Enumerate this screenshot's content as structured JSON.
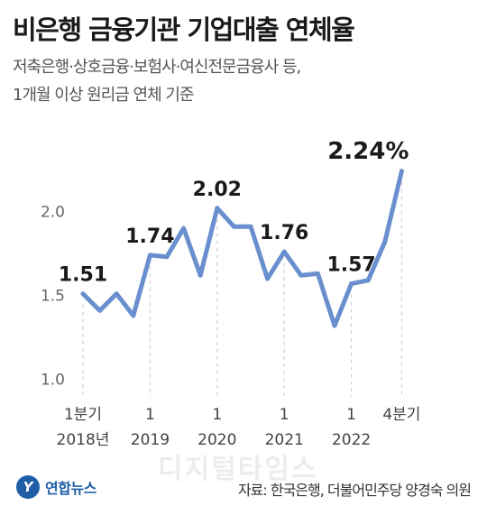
{
  "header": {
    "title": "비은행 금융기관 기업대출 연체율",
    "subtitle_line1": "저축은행·상호금융·보험사·여신전문금융사 등,",
    "subtitle_line2": "1개월 이상 원리금 연체 기준"
  },
  "footer": {
    "logo_text": "연합뉴스",
    "source": "자료: 한국은행, 더불어민주당 양경숙 의원",
    "watermark": "디지털타임스"
  },
  "colors": {
    "line": "#6a8fcf",
    "gridline": "#c8c8c8",
    "text": "#1a1a1a"
  },
  "chart_data": {
    "type": "line",
    "x": [
      "2018 Q1",
      "2018 Q2",
      "2018 Q3",
      "2018 Q4",
      "2019 Q1",
      "2019 Q2",
      "2019 Q3",
      "2019 Q4",
      "2020 Q1",
      "2020 Q2",
      "2020 Q3",
      "2020 Q4",
      "2021 Q1",
      "2021 Q2",
      "2021 Q3",
      "2021 Q4",
      "2022 Q1",
      "2022 Q2",
      "2022 Q3",
      "2022 Q4"
    ],
    "values": [
      1.51,
      1.41,
      1.51,
      1.38,
      1.74,
      1.73,
      1.9,
      1.62,
      2.02,
      1.91,
      1.91,
      1.6,
      1.76,
      1.62,
      1.63,
      1.32,
      1.57,
      1.59,
      1.82,
      2.24
    ],
    "ylim": [
      0.95,
      2.4
    ],
    "yticks": [
      "1.0",
      "1.5",
      "2.0"
    ],
    "xticks": [
      {
        "index": 0,
        "line1": "1분기",
        "line2": "2018년"
      },
      {
        "index": 4,
        "line1": "1",
        "line2": "2019"
      },
      {
        "index": 8,
        "line1": "1",
        "line2": "2020"
      },
      {
        "index": 12,
        "line1": "1",
        "line2": "2021"
      },
      {
        "index": 16,
        "line1": "1",
        "line2": "2022"
      },
      {
        "index": 19,
        "line1": "4분기",
        "line2": ""
      }
    ],
    "annotations": [
      {
        "index": 0,
        "label": "1.51"
      },
      {
        "index": 4,
        "label": "1.74"
      },
      {
        "index": 8,
        "label": "2.02"
      },
      {
        "index": 12,
        "label": "1.76"
      },
      {
        "index": 16,
        "label": "1.57"
      },
      {
        "index": 19,
        "label": "2.24%"
      }
    ],
    "grid": "vertical dashed at labeled ticks"
  }
}
